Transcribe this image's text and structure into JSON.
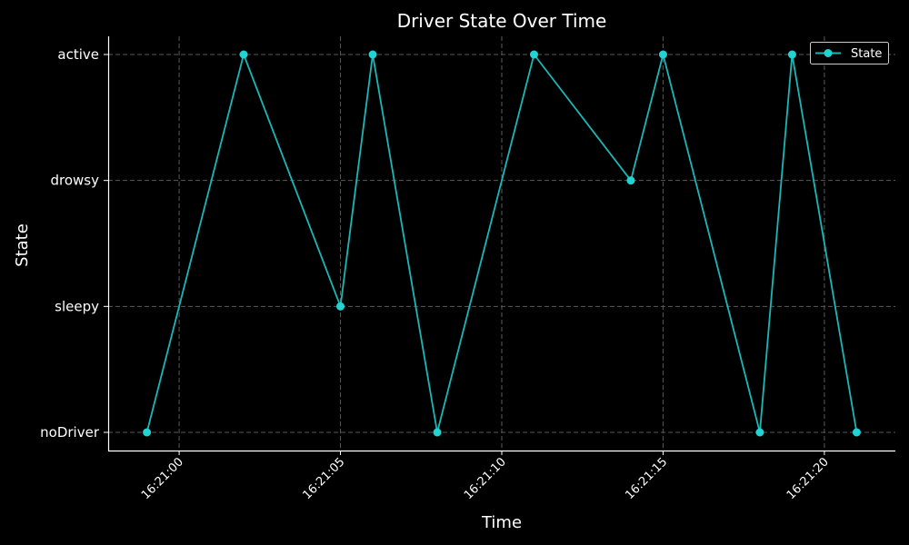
{
  "chart_data": {
    "type": "line",
    "title": "Driver State Over Time",
    "xlabel": "Time",
    "ylabel": "State",
    "y_categories": [
      "noDriver",
      "sleepy",
      "drowsy",
      "active"
    ],
    "x_ticks": [
      "16:21:00",
      "16:21:05",
      "16:21:10",
      "16:21:15",
      "16:21:20"
    ],
    "xlim": [
      "16:20:57.8",
      "16:21:22.2"
    ],
    "grid": true,
    "legend_position": "top-right",
    "series": [
      {
        "name": "State",
        "color": "#1ab7b7",
        "marker_color": "#22d3d3",
        "points": [
          {
            "x": "16:20:59",
            "y": "noDriver"
          },
          {
            "x": "16:21:02",
            "y": "active"
          },
          {
            "x": "16:21:05",
            "y": "sleepy"
          },
          {
            "x": "16:21:06",
            "y": "active"
          },
          {
            "x": "16:21:08",
            "y": "noDriver"
          },
          {
            "x": "16:21:11",
            "y": "active"
          },
          {
            "x": "16:21:14",
            "y": "drowsy"
          },
          {
            "x": "16:21:15",
            "y": "active"
          },
          {
            "x": "16:21:18",
            "y": "noDriver"
          },
          {
            "x": "16:21:19",
            "y": "active"
          },
          {
            "x": "16:21:21",
            "y": "noDriver"
          }
        ]
      }
    ]
  }
}
